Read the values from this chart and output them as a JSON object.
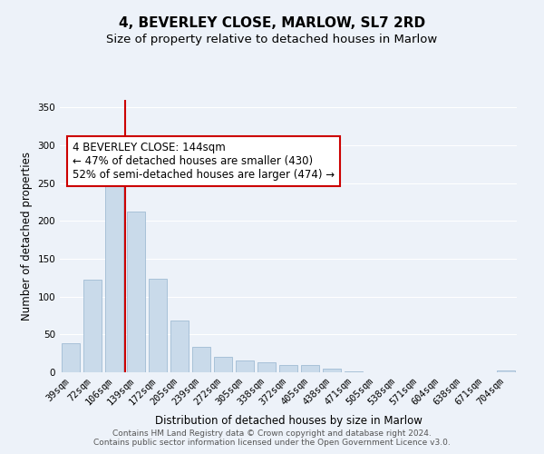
{
  "title": "4, BEVERLEY CLOSE, MARLOW, SL7 2RD",
  "subtitle": "Size of property relative to detached houses in Marlow",
  "xlabel": "Distribution of detached houses by size in Marlow",
  "ylabel": "Number of detached properties",
  "bar_labels": [
    "39sqm",
    "72sqm",
    "106sqm",
    "139sqm",
    "172sqm",
    "205sqm",
    "239sqm",
    "272sqm",
    "305sqm",
    "338sqm",
    "372sqm",
    "405sqm",
    "438sqm",
    "471sqm",
    "505sqm",
    "538sqm",
    "571sqm",
    "604sqm",
    "638sqm",
    "671sqm",
    "704sqm"
  ],
  "bar_values": [
    38,
    122,
    252,
    212,
    124,
    68,
    34,
    20,
    16,
    13,
    10,
    10,
    5,
    1,
    0,
    0,
    0,
    0,
    0,
    0,
    3
  ],
  "bar_color": "#c9daea",
  "bar_edge_color": "#a0bcd4",
  "vline_pos": 3.5,
  "vline_color": "#cc0000",
  "annotation_text": "4 BEVERLEY CLOSE: 144sqm\n← 47% of detached houses are smaller (430)\n52% of semi-detached houses are larger (474) →",
  "annotation_box_edgecolor": "#cc0000",
  "annotation_box_facecolor": "white",
  "ylim": [
    0,
    360
  ],
  "yticks": [
    0,
    50,
    100,
    150,
    200,
    250,
    300,
    350
  ],
  "footer_text": "Contains HM Land Registry data © Crown copyright and database right 2024.\nContains public sector information licensed under the Open Government Licence v3.0.",
  "fig_background_color": "#edf2f9",
  "plot_background_color": "#edf2f9",
  "grid_color": "white",
  "title_fontsize": 11,
  "subtitle_fontsize": 9.5,
  "axis_label_fontsize": 8.5,
  "tick_fontsize": 7.5,
  "annotation_fontsize": 8.5,
  "footer_fontsize": 6.5
}
